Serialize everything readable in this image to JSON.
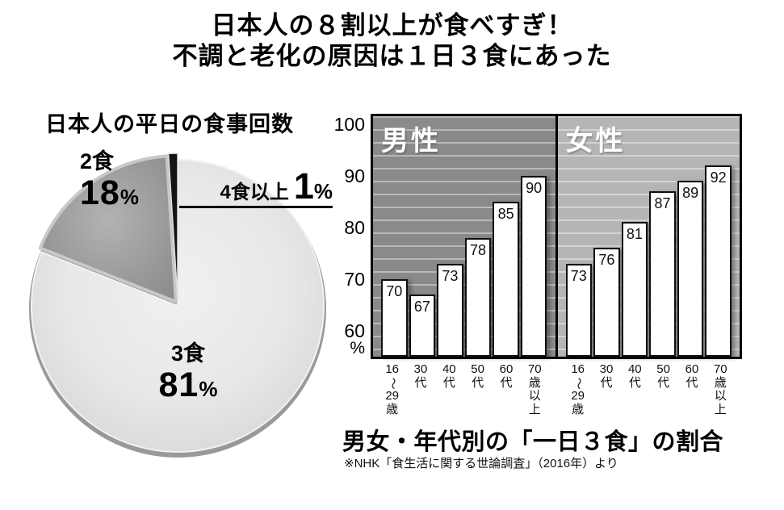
{
  "header": {
    "line1": "日本人の８割以上が食べすぎ！",
    "line2": "不調と老化の原因は１日３食にあった"
  },
  "chart_data": [
    {
      "type": "pie",
      "title": "日本人の平日の食事回数",
      "unit": "%",
      "start_angle_deg": -90,
      "direction": "clockwise",
      "slices": [
        {
          "label": "3食",
          "value": 81,
          "color": "#e6e6e6"
        },
        {
          "label": "2食",
          "value": 18,
          "color": "#9e9e9e"
        },
        {
          "label": "4食以上",
          "value": 1,
          "color": "#141414"
        }
      ],
      "rim_color": "#999999"
    },
    {
      "type": "bar",
      "title": "男女・年代別の「一日３食」の割合",
      "source": "※NHK「食生活に関する世論調査」（2016年）より",
      "y_ticks": [
        100,
        90,
        80,
        70,
        60
      ],
      "y_unit": "%",
      "ylim": [
        55,
        101.5
      ],
      "bar_color": "#ffffff",
      "categories_lines": [
        [
          "16",
          "〜",
          "29",
          "歳"
        ],
        [
          "30",
          "代"
        ],
        [
          "40",
          "代"
        ],
        [
          "50",
          "代"
        ],
        [
          "60",
          "代"
        ],
        [
          "70",
          "歳",
          "以",
          "上"
        ]
      ],
      "groups": [
        {
          "name": "男性",
          "bg": "#8a8a8a",
          "values": [
            70,
            67,
            73,
            78,
            85,
            90
          ]
        },
        {
          "name": "女性",
          "bg": "#b5b5b5",
          "values": [
            73,
            76,
            81,
            87,
            89,
            92
          ]
        }
      ]
    }
  ]
}
